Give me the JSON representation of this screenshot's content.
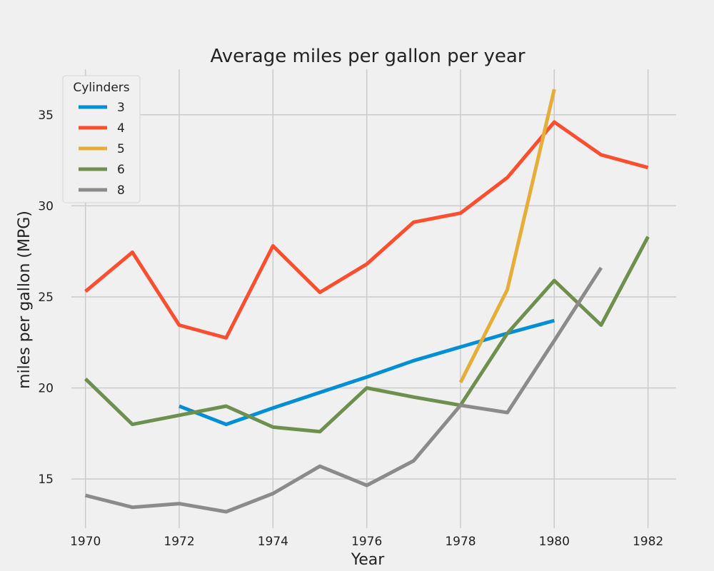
{
  "chart_data": {
    "type": "line",
    "title": "Average miles per gallon per year",
    "xlabel": "Year",
    "ylabel": "miles per gallon (MPG)",
    "xlim": [
      1969.7,
      1982.6
    ],
    "ylim": [
      12.3,
      37.5
    ],
    "xticks": [
      1970,
      1972,
      1974,
      1976,
      1978,
      1980,
      1982
    ],
    "yticks": [
      15,
      20,
      25,
      30,
      35
    ],
    "grid": true,
    "legend": {
      "title": "Cylinders",
      "position": "top-left"
    },
    "series": [
      {
        "name": "3",
        "color": "#008fd5",
        "x": [
          1972,
          1973,
          1974,
          1975,
          1976,
          1977,
          1978,
          1979,
          1980
        ],
        "y": [
          19.0,
          18.0,
          18.9,
          19.75,
          20.6,
          21.5,
          22.25,
          23.0,
          23.7
        ]
      },
      {
        "name": "4",
        "color": "#fc4f30",
        "x": [
          1970,
          1971,
          1972,
          1973,
          1974,
          1975,
          1976,
          1977,
          1978,
          1979,
          1980,
          1981,
          1982
        ],
        "y": [
          25.3,
          27.45,
          23.45,
          22.75,
          27.8,
          25.25,
          26.8,
          29.1,
          29.6,
          31.55,
          34.6,
          32.8,
          32.1
        ]
      },
      {
        "name": "5",
        "color": "#e5ae38",
        "x": [
          1978,
          1979,
          1980
        ],
        "y": [
          20.3,
          25.4,
          36.4
        ]
      },
      {
        "name": "6",
        "color": "#6d904f",
        "x": [
          1970,
          1971,
          1972,
          1973,
          1974,
          1975,
          1976,
          1977,
          1978,
          1979,
          1980,
          1981,
          1982
        ],
        "y": [
          20.5,
          18.0,
          18.5,
          19.0,
          17.85,
          17.6,
          20.0,
          19.5,
          19.05,
          23.0,
          25.9,
          23.45,
          28.3
        ]
      },
      {
        "name": "8",
        "color": "#8b8b8b",
        "x": [
          1970,
          1971,
          1972,
          1973,
          1974,
          1975,
          1976,
          1977,
          1978,
          1979,
          1980,
          1981
        ],
        "y": [
          14.1,
          13.45,
          13.65,
          13.2,
          14.2,
          15.7,
          14.65,
          16.0,
          19.05,
          18.65,
          22.6,
          26.6
        ]
      }
    ]
  }
}
